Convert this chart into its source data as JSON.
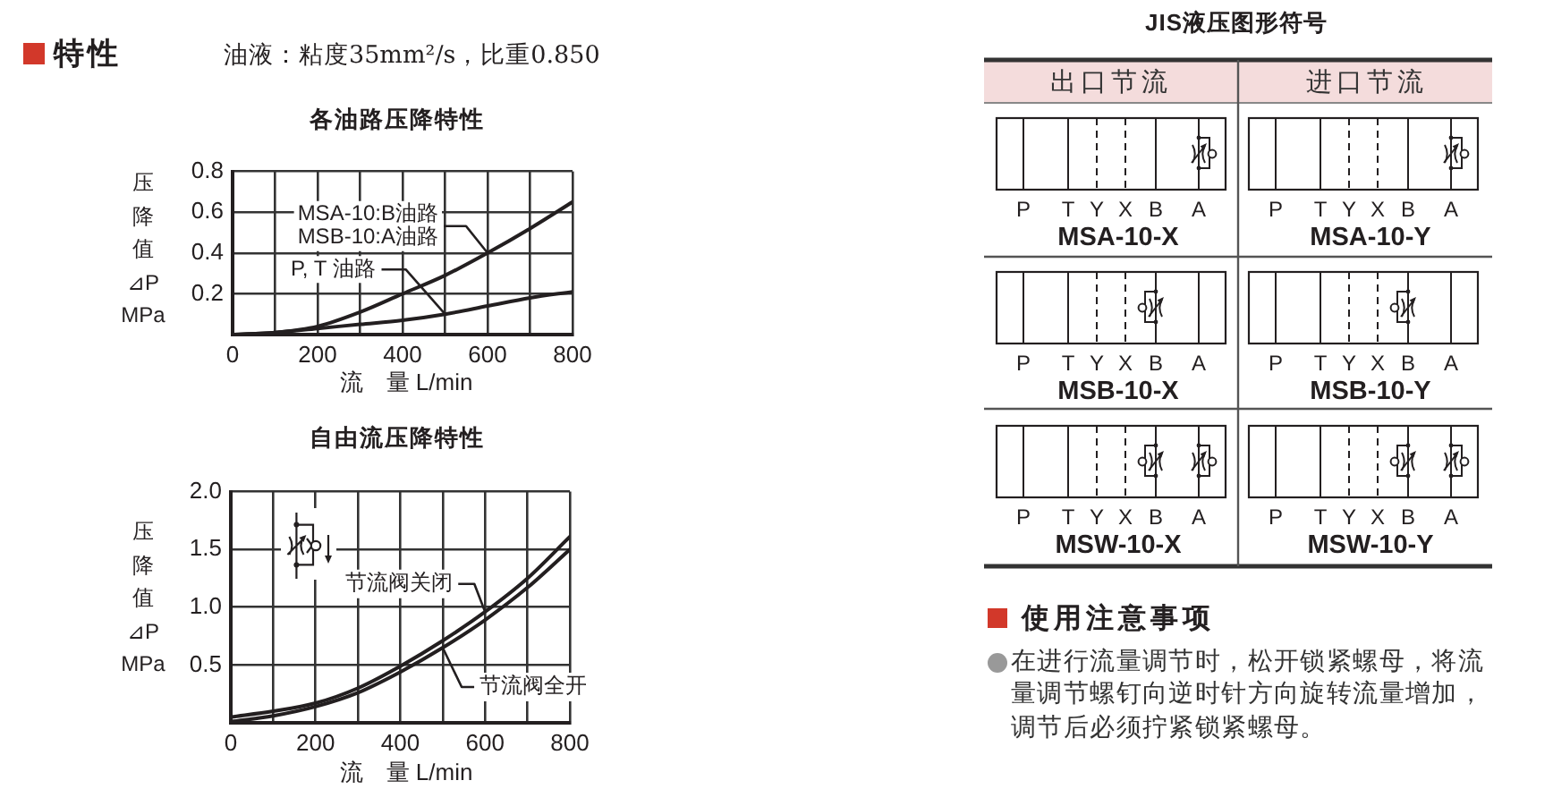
{
  "chart_data": [
    {
      "type": "other",
      "title": "特性",
      "subtitle": "油液：粘度35mm²/s，比重0.850"
    },
    {
      "type": "line",
      "title": "各油路压降特性",
      "xlabel": "流　量 L/min",
      "ylabel": "压降值\n⊿P\nMPa",
      "x": [
        0,
        100,
        200,
        300,
        400,
        500,
        600,
        700,
        800
      ],
      "series": [
        {
          "name": "MSA-10:B油路\nMSB-10:A油路",
          "color": "#231f20",
          "values": [
            0,
            0.01,
            0.04,
            0.11,
            0.2,
            0.29,
            0.4,
            0.52,
            0.65
          ]
        },
        {
          "name": "P, T 油路",
          "color": "#231f20",
          "values": [
            0,
            0.01,
            0.03,
            0.05,
            0.07,
            0.1,
            0.14,
            0.18,
            0.21
          ]
        }
      ],
      "xlim": [
        0,
        800
      ],
      "ylim": [
        0,
        0.8
      ],
      "xticks": [
        0,
        {
          "value": 100,
          "label": null
        },
        200,
        {
          "value": 300,
          "label": null
        },
        400,
        {
          "value": 500,
          "label": null
        },
        600,
        {
          "value": 700,
          "label": null
        },
        800
      ],
      "yticks": [
        0.2,
        0.4,
        0.6,
        0.8
      ],
      "grid": true
    },
    {
      "type": "line",
      "title": "自由流压降特性",
      "xlabel": "流　量 L/min",
      "ylabel": "压降值\n⊿P\nMPa",
      "x": [
        0,
        100,
        200,
        300,
        400,
        500,
        600,
        700,
        800
      ],
      "series": [
        {
          "name": "节流阀关闭",
          "color": "#231f20",
          "values": [
            0.05,
            0.1,
            0.17,
            0.3,
            0.49,
            0.71,
            0.96,
            1.25,
            1.61
          ]
        },
        {
          "name": "节流阀全开",
          "color": "#231f20",
          "values": [
            0.01,
            0.06,
            0.14,
            0.26,
            0.44,
            0.65,
            0.89,
            1.17,
            1.5
          ]
        }
      ],
      "xlim": [
        0,
        800
      ],
      "ylim": [
        0,
        2
      ],
      "xticks": [
        0,
        {
          "value": 100,
          "label": null
        },
        200,
        {
          "value": 300,
          "label": null
        },
        400,
        {
          "value": 500,
          "label": null
        },
        600,
        {
          "value": 700,
          "label": null
        },
        800
      ],
      "yticks": [
        0.5,
        {
          "value": 1,
          "label": "1.0"
        },
        1.5,
        {
          "value": 2,
          "label": "2.0"
        }
      ],
      "grid": true
    },
    {
      "type": "other",
      "title": "JIS液压图形符号",
      "categories": [
        "出口节流",
        "进口节流"
      ],
      "annotations": [
        "P",
        "T",
        "Y",
        "X",
        "B",
        "A",
        "MSA-10-X",
        "P",
        "T",
        "Y",
        "X",
        "B",
        "A",
        "MSA-10-Y",
        "P",
        "T",
        "Y",
        "X",
        "B",
        "A",
        "MSB-10-X",
        "P",
        "T",
        "Y",
        "X",
        "B",
        "A",
        "MSB-10-Y",
        "P",
        "T",
        "Y",
        "X",
        "B",
        "A",
        "MSW-10-X",
        "P",
        "T",
        "Y",
        "X",
        "B",
        "A",
        "MSW-10-Y"
      ]
    },
    {
      "type": "other",
      "title": "使用注意事项",
      "annotations": [
        "在进行流量调节时，松开锁紧螺母，将流量调节螺钉向逆时针方向旋转流量增加，调节后必须拧紧锁紧螺母。"
      ]
    }
  ]
}
